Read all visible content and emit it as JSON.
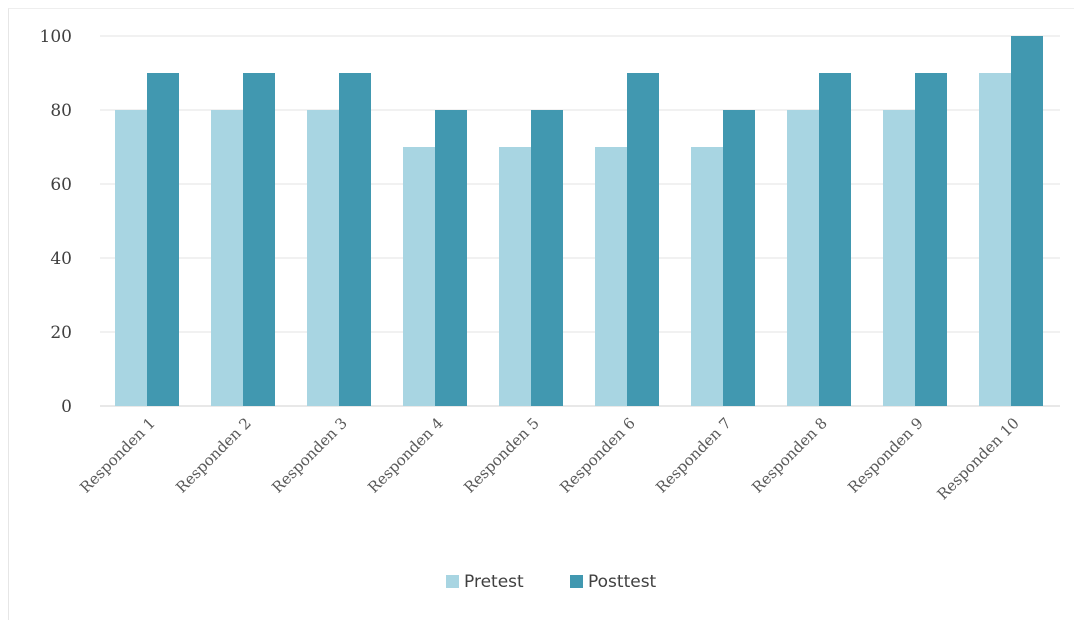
{
  "chart_data": {
    "type": "bar",
    "title": "",
    "xlabel": "",
    "ylabel": "",
    "ylim": [
      0,
      100
    ],
    "yticks": [
      0,
      20,
      40,
      60,
      80,
      100
    ],
    "grid": true,
    "legend_position": "bottom",
    "categories": [
      "Responden 1",
      "Responden 2",
      "Responden 3",
      "Responden 4",
      "Responden 5",
      "Responden 6",
      "Responden 7",
      "Responden 8",
      "Responden 9",
      "Responden 10"
    ],
    "series": [
      {
        "name": "Pretest",
        "color": "#a8d5e2",
        "values": [
          80,
          80,
          80,
          70,
          70,
          70,
          70,
          80,
          80,
          90
        ]
      },
      {
        "name": "Posttest",
        "color": "#4198b0",
        "values": [
          90,
          90,
          90,
          80,
          80,
          90,
          80,
          90,
          90,
          100
        ]
      }
    ]
  }
}
